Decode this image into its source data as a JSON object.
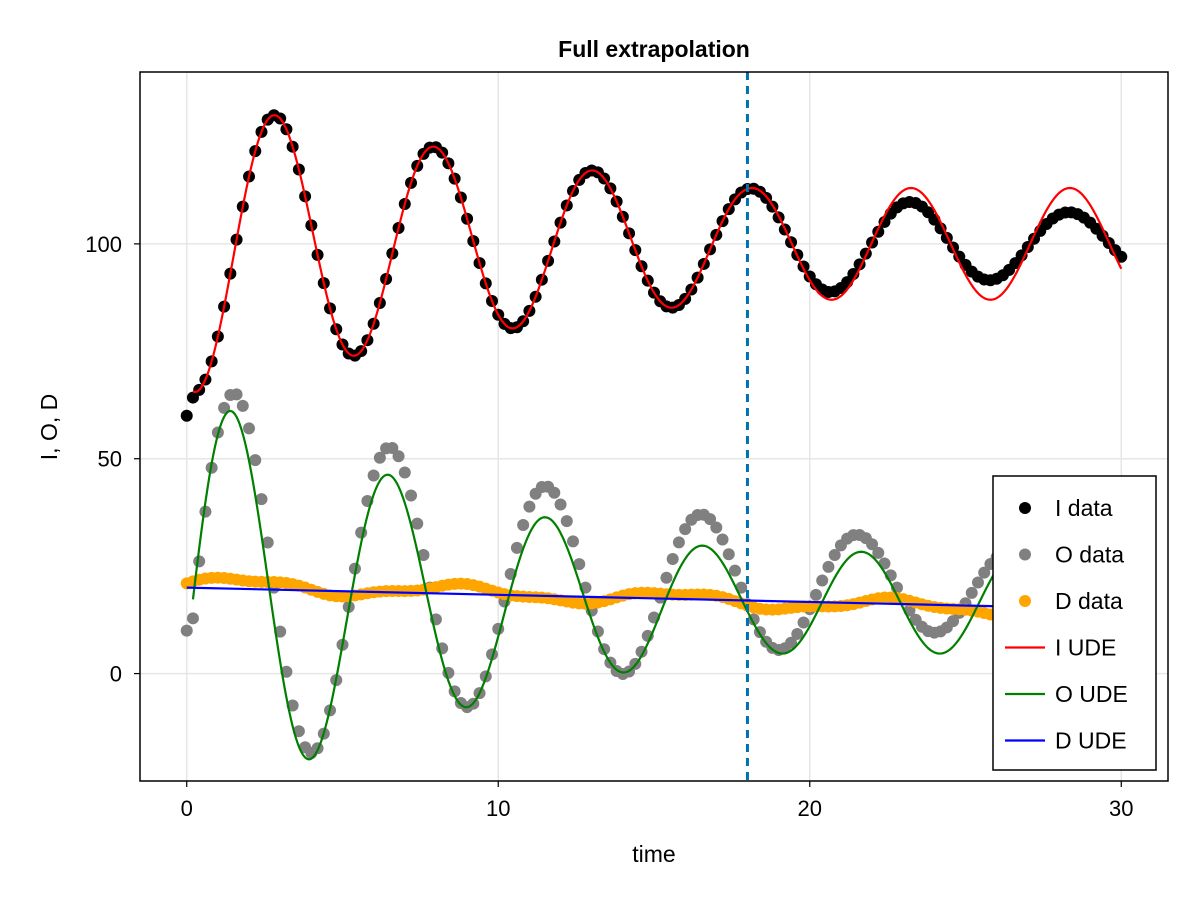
{
  "chart_data": {
    "type": "line",
    "title": "Full extrapolation",
    "xlabel": "time",
    "ylabel": "I, O, D",
    "xlim": [
      -1.5,
      31.5
    ],
    "ylim": [
      -25,
      140
    ],
    "xticks": [
      0,
      10,
      20,
      30
    ],
    "xtick_labels": [
      "0",
      "10",
      "20",
      "30"
    ],
    "yticks": [
      0,
      50,
      100
    ],
    "ytick_labels": [
      "0",
      "50",
      "100"
    ],
    "grid": true,
    "legend_position": "bottom-right",
    "vline": {
      "x": 18,
      "color": "#0072b2",
      "style": "dashed"
    },
    "series": [
      {
        "name": "I data",
        "kind": "scatter",
        "color": "#000000",
        "model": {
          "base": 100,
          "amp": 35,
          "decay": 0.055,
          "period": 5.1,
          "phase_peak": 2.85,
          "t_start": 0,
          "t_end": 30,
          "step": 0.2,
          "start_value": 60
        }
      },
      {
        "name": "O data",
        "kind": "scatter",
        "color": "#808080",
        "model": {
          "base": 20,
          "amp": 50,
          "decay": 0.065,
          "period": 5.0,
          "phase_peak": 1.55,
          "t_start": 0,
          "t_end": 30,
          "step": 0.2,
          "start_value": 10
        }
      },
      {
        "name": "D data",
        "kind": "scatter",
        "color": "#ffa500",
        "model": {
          "start": 21,
          "end": 14,
          "wiggle": 1.5,
          "t_start": 0,
          "t_end": 30,
          "step": 0.2
        }
      },
      {
        "name": "I UDE",
        "kind": "line",
        "color": "#ff0000",
        "model": {
          "base": 100,
          "amp": 35,
          "decay": 0.055,
          "decay_after": 0.0,
          "decay_switch": 18,
          "period": 5.1,
          "phase_peak": 2.85,
          "t_start": 0.2,
          "t_end": 30,
          "step": 0.05
        }
      },
      {
        "name": "O UDE",
        "kind": "line",
        "color": "#008000",
        "model": {
          "base": 16.5,
          "amp": 50,
          "decay": 0.08,
          "decay_after": 0.0,
          "decay_switch": 18,
          "period": 5.05,
          "phase_peak": 1.45,
          "t_start": 0.2,
          "t_end": 30,
          "step": 0.05
        }
      },
      {
        "name": "D UDE",
        "kind": "line",
        "color": "#0000ff",
        "points": [
          [
            0,
            20
          ],
          [
            30,
            15
          ]
        ]
      }
    ]
  }
}
